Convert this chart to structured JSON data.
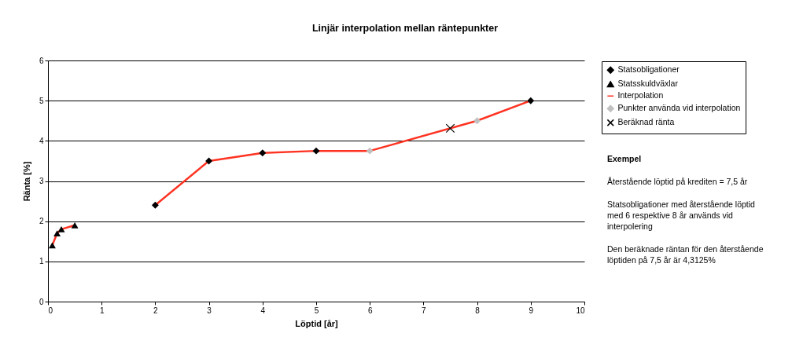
{
  "chart_data": {
    "type": "scatter",
    "title": "Linjär interpolation mellan räntepunkter",
    "xlabel": "Löptid [år]",
    "ylabel": "Ränta [%]",
    "xlim": [
      0,
      10
    ],
    "xticks": [
      0,
      1,
      2,
      3,
      4,
      5,
      6,
      7,
      8,
      9,
      10
    ],
    "ylim": [
      0,
      6
    ],
    "yticks": [
      0,
      1,
      2,
      3,
      4,
      5,
      6
    ],
    "grid": "y",
    "legend": "right",
    "series": [
      {
        "name": "Interpolation",
        "type": "line",
        "color": "#ff3322",
        "marker": "none",
        "x": [
          0.08,
          0.17,
          0.25,
          0.5,
          1.25,
          2,
          3,
          4,
          5,
          6,
          8,
          9
        ],
        "values": [
          1.4,
          1.7,
          1.8,
          1.9,
          null,
          2.4,
          3.5,
          3.7,
          3.75,
          3.75,
          4.5,
          5.0
        ]
      },
      {
        "name": "Statsobligationer",
        "type": "scatter",
        "color": "#000000",
        "marker": "diamond",
        "x": [
          2,
          3,
          4,
          5,
          9
        ],
        "values": [
          2.4,
          3.5,
          3.7,
          3.75,
          5.0
        ]
      },
      {
        "name": "Statsskuldväxlar",
        "type": "scatter",
        "color": "#000000",
        "marker": "triangle",
        "x": [
          0.08,
          0.17,
          0.25,
          0.5
        ],
        "values": [
          1.4,
          1.7,
          1.8,
          1.9
        ]
      },
      {
        "name": "Punkter använda vid interpolation",
        "type": "scatter",
        "color": "#c0c0c0",
        "marker": "diamond",
        "x": [
          6,
          8
        ],
        "values": [
          3.75,
          4.5
        ]
      },
      {
        "name": "Beräknad ränta",
        "type": "scatter",
        "color": "#000000",
        "marker": "cross",
        "x": [
          7.5
        ],
        "values": [
          4.3125
        ]
      }
    ],
    "annotations": [
      "Exempel",
      "Återstående löptid på krediten = 7,5 år",
      "Statsobligationer med återstående löptid med 6 respektive 8 år används vid interpolering",
      "Den beräknade räntan för den återstående löptiden på 7,5 år är 4,3125%"
    ]
  }
}
